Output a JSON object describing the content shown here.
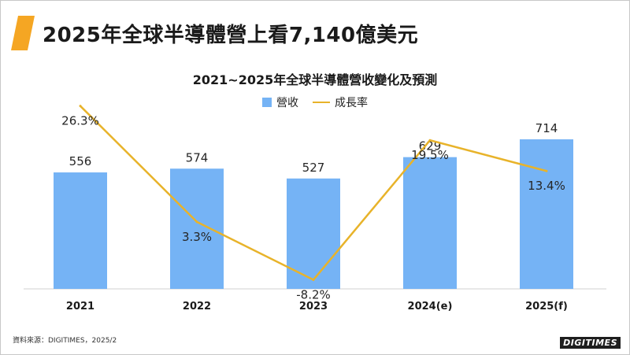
{
  "header": {
    "main_title": "2025年全球半導體營上看7,140億美元"
  },
  "chart_data": {
    "type": "bar",
    "title": "2021~2025年全球半導體營收變化及預測",
    "categories": [
      "2021",
      "2022",
      "2023",
      "2024(e)",
      "2025(f)"
    ],
    "series": [
      {
        "name": "營收",
        "type": "bar",
        "values": [
          556,
          574,
          527,
          629,
          714
        ],
        "color": "#75b3f5"
      },
      {
        "name": "成長率",
        "type": "line",
        "values": [
          26.3,
          3.3,
          -8.2,
          19.5,
          13.4
        ],
        "unit": "%",
        "color": "#e8b32a"
      }
    ],
    "legend_position": "top-center",
    "grid": false
  },
  "footer": {
    "source": "資料來源：DIGITIMES，2025/2",
    "logo": "DIGITIMES"
  }
}
